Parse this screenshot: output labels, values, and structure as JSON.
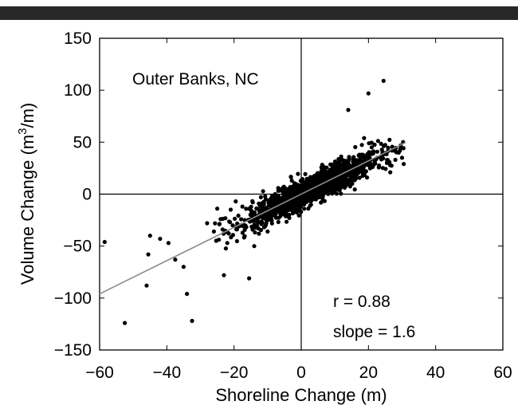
{
  "chart_data": {
    "type": "scatter",
    "title": "",
    "annotations": {
      "location": "Outer Banks, NC",
      "r_text": "r = 0.88",
      "slope_text": "slope = 1.6"
    },
    "xlabel": "Shoreline Change (m)",
    "ylabel_main": "Volume Change (m",
    "ylabel_sup": "3",
    "ylabel_tail": "/m)",
    "xlim": [
      -60,
      60
    ],
    "ylim": [
      -150,
      150
    ],
    "xticks": [
      -60,
      -40,
      -20,
      0,
      20,
      40,
      60
    ],
    "yticks": [
      -150,
      -100,
      -50,
      0,
      50,
      100,
      150
    ],
    "xtick_labels": [
      "−60",
      "−40",
      "−20",
      "0",
      "20",
      "40",
      "60"
    ],
    "ytick_labels": [
      "−150",
      "−100",
      "−50",
      "0",
      "50",
      "100",
      "150"
    ],
    "grid": false,
    "zero_lines": true,
    "fit_line": {
      "slope": 1.6,
      "intercept": 0.0,
      "x_range": [
        -60,
        31
      ],
      "color": "#8c8c8c"
    },
    "point_color": "#000000",
    "outliers": [
      [
        -58.5,
        -46
      ],
      [
        -52.5,
        -124
      ],
      [
        -46,
        -88
      ],
      [
        -45.5,
        -58
      ],
      [
        -45,
        -40
      ],
      [
        -42,
        -43
      ],
      [
        -39.5,
        -47
      ],
      [
        -37.5,
        -63
      ],
      [
        -35,
        -70
      ],
      [
        -34,
        -96
      ],
      [
        -32.5,
        -122
      ],
      [
        -25,
        -14
      ],
      [
        -24,
        -24
      ],
      [
        -23,
        -78
      ],
      [
        -15.5,
        -81
      ],
      [
        -19.5,
        -7
      ],
      [
        -17.5,
        -12
      ],
      [
        -12,
        -3
      ],
      [
        14,
        81
      ],
      [
        20,
        97
      ],
      [
        24.5,
        109
      ],
      [
        28,
        33
      ],
      [
        29,
        40
      ],
      [
        30,
        35
      ],
      [
        30.5,
        29
      ],
      [
        29.5,
        44
      ],
      [
        27,
        42
      ],
      [
        25.5,
        30
      ],
      [
        26.5,
        21
      ],
      [
        -28,
        -28
      ],
      [
        -26,
        -36
      ],
      [
        -22,
        -47
      ],
      [
        -21,
        -15
      ],
      [
        -14,
        -50
      ],
      [
        -10,
        -36
      ]
    ],
    "cluster": {
      "count": 1500,
      "x_mean": 3,
      "x_std": 9.5,
      "x_min": -26,
      "x_max": 31,
      "slope": 1.6,
      "intercept": 0,
      "residual_std": 7,
      "seed": 12345
    }
  }
}
